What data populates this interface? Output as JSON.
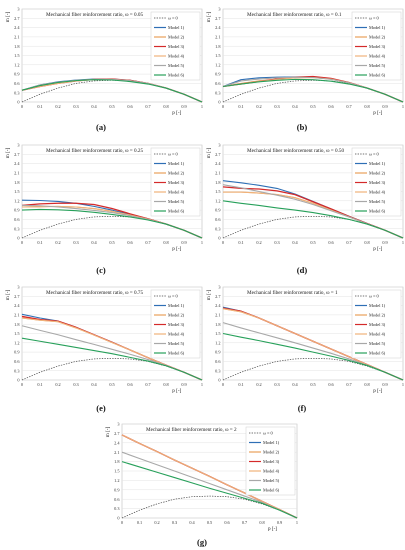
{
  "figure": {
    "legend_labels": [
      "ω = 0",
      "Model 1)",
      "Model 2)",
      "Model 3)",
      "Model 4)",
      "Model 5)",
      "Model 6)"
    ],
    "series_colors": [
      "#444444",
      "#2e6fb5",
      "#e8a05a",
      "#d42a2a",
      "#f0b27a",
      "#a8a8a8",
      "#27a05a"
    ]
  },
  "chart_data": [
    {
      "type": "line",
      "panel_label": "(a)",
      "title": "Mechanical fiber reinforcement ratio, ω = 0.05",
      "xlabel": "p [-]",
      "ylabel": "m [-]",
      "xlim": [
        0,
        1
      ],
      "ylim": [
        0,
        3
      ],
      "xticks": [
        "0",
        "0.1",
        "0.2",
        "0.3",
        "0.4",
        "0.5",
        "0.6",
        "0.7",
        "0.8",
        "0.9",
        "1"
      ],
      "yticks": [
        "0",
        "0.3",
        "0.6",
        "0.9",
        "1.2",
        "1.5",
        "1.8",
        "2.1",
        "2.4",
        "2.7",
        "3"
      ],
      "x": [
        0,
        0.1,
        0.2,
        0.3,
        0.4,
        0.5,
        0.6,
        0.7,
        0.8,
        0.9,
        1
      ],
      "series": [
        {
          "name": "ω = 0",
          "values": [
            0,
            0.25,
            0.45,
            0.6,
            0.68,
            0.7,
            0.68,
            0.6,
            0.45,
            0.25,
            0
          ]
        },
        {
          "name": "Model 1)",
          "values": [
            0.38,
            0.55,
            0.65,
            0.71,
            0.74,
            0.74,
            0.7,
            0.6,
            0.45,
            0.25,
            0
          ]
        },
        {
          "name": "Model 2)",
          "values": [
            0.38,
            0.52,
            0.62,
            0.69,
            0.73,
            0.73,
            0.69,
            0.6,
            0.45,
            0.25,
            0
          ]
        },
        {
          "name": "Model 3)",
          "values": [
            0.38,
            0.5,
            0.6,
            0.68,
            0.73,
            0.74,
            0.7,
            0.6,
            0.45,
            0.25,
            0
          ]
        },
        {
          "name": "Model 4)",
          "values": [
            0.38,
            0.5,
            0.6,
            0.68,
            0.72,
            0.73,
            0.69,
            0.6,
            0.45,
            0.25,
            0
          ]
        },
        {
          "name": "Model 5)",
          "values": [
            0.38,
            0.55,
            0.64,
            0.7,
            0.73,
            0.73,
            0.69,
            0.6,
            0.45,
            0.25,
            0
          ]
        },
        {
          "name": "Model 6)",
          "values": [
            0.38,
            0.53,
            0.63,
            0.69,
            0.72,
            0.71,
            0.66,
            0.58,
            0.45,
            0.25,
            0
          ]
        }
      ]
    },
    {
      "type": "line",
      "panel_label": "(b)",
      "title": "Mechanical fiber reinforcement ratio, ω = 0.1",
      "xlabel": "p [-]",
      "ylabel": "m [-]",
      "xlim": [
        0,
        1
      ],
      "ylim": [
        0,
        3
      ],
      "xticks": [
        "0",
        "0.1",
        "0.2",
        "0.3",
        "0.4",
        "0.5",
        "0.6",
        "0.7",
        "0.8",
        "0.9",
        "1"
      ],
      "yticks": [
        "0",
        "0.3",
        "0.6",
        "0.9",
        "1.2",
        "1.5",
        "1.8",
        "2.1",
        "2.4",
        "2.7",
        "3"
      ],
      "x": [
        0,
        0.1,
        0.2,
        0.3,
        0.4,
        0.5,
        0.6,
        0.7,
        0.8,
        0.9,
        1
      ],
      "series": [
        {
          "name": "ω = 0",
          "values": [
            0,
            0.25,
            0.45,
            0.6,
            0.68,
            0.7,
            0.68,
            0.6,
            0.45,
            0.25,
            0
          ]
        },
        {
          "name": "Model 1)",
          "values": [
            0.5,
            0.72,
            0.78,
            0.8,
            0.81,
            0.8,
            0.74,
            0.62,
            0.45,
            0.25,
            0
          ]
        },
        {
          "name": "Model 2)",
          "values": [
            0.5,
            0.6,
            0.68,
            0.74,
            0.78,
            0.79,
            0.74,
            0.62,
            0.45,
            0.25,
            0
          ]
        },
        {
          "name": "Model 3)",
          "values": [
            0.5,
            0.58,
            0.66,
            0.74,
            0.8,
            0.82,
            0.76,
            0.63,
            0.45,
            0.25,
            0
          ]
        },
        {
          "name": "Model 4)",
          "values": [
            0.5,
            0.58,
            0.66,
            0.73,
            0.78,
            0.79,
            0.74,
            0.62,
            0.45,
            0.25,
            0
          ]
        },
        {
          "name": "Model 5)",
          "values": [
            0.5,
            0.68,
            0.74,
            0.78,
            0.8,
            0.79,
            0.73,
            0.62,
            0.45,
            0.25,
            0
          ]
        },
        {
          "name": "Model 6)",
          "values": [
            0.5,
            0.58,
            0.65,
            0.7,
            0.73,
            0.72,
            0.67,
            0.58,
            0.45,
            0.25,
            0
          ]
        }
      ]
    },
    {
      "type": "line",
      "panel_label": "(c)",
      "title": "Mechanical fiber reinforcement ratio, ω = 0.25",
      "xlabel": "p [-]",
      "ylabel": "m [-]",
      "xlim": [
        0,
        1
      ],
      "ylim": [
        0,
        3
      ],
      "xticks": [
        "0",
        "0.1",
        "0.2",
        "0.3",
        "0.4",
        "0.5",
        "0.6",
        "0.7",
        "0.8",
        "0.9",
        "1"
      ],
      "yticks": [
        "0",
        "0.3",
        "0.6",
        "0.9",
        "1.2",
        "1.5",
        "1.8",
        "2.1",
        "2.4",
        "2.7",
        "3"
      ],
      "x": [
        0,
        0.1,
        0.2,
        0.3,
        0.4,
        0.5,
        0.6,
        0.7,
        0.8,
        0.9,
        1
      ],
      "series": [
        {
          "name": "ω = 0",
          "values": [
            0,
            0.25,
            0.45,
            0.6,
            0.68,
            0.7,
            0.68,
            0.6,
            0.45,
            0.25,
            0
          ]
        },
        {
          "name": "Model 1)",
          "values": [
            1.22,
            1.21,
            1.18,
            1.12,
            1.02,
            0.9,
            0.76,
            0.62,
            0.45,
            0.25,
            0
          ]
        },
        {
          "name": "Model 2)",
          "values": [
            1.0,
            1.02,
            1.02,
            1.0,
            0.95,
            0.86,
            0.74,
            0.61,
            0.45,
            0.25,
            0
          ]
        },
        {
          "name": "Model 3)",
          "values": [
            1.05,
            1.1,
            1.12,
            1.12,
            1.08,
            0.95,
            0.78,
            0.62,
            0.45,
            0.25,
            0
          ]
        },
        {
          "name": "Model 4)",
          "values": [
            1.0,
            1.0,
            1.02,
            1.0,
            0.95,
            0.86,
            0.74,
            0.61,
            0.45,
            0.25,
            0
          ]
        },
        {
          "name": "Model 5)",
          "values": [
            1.05,
            1.04,
            1.0,
            0.95,
            0.89,
            0.82,
            0.72,
            0.6,
            0.45,
            0.25,
            0
          ]
        },
        {
          "name": "Model 6)",
          "values": [
            0.9,
            0.92,
            0.91,
            0.88,
            0.83,
            0.76,
            0.68,
            0.58,
            0.45,
            0.25,
            0
          ]
        }
      ]
    },
    {
      "type": "line",
      "panel_label": "(d)",
      "title": "Mechanical fiber reinforcement ratio, ω = 0.50",
      "xlabel": "p [-]",
      "ylabel": "m [-]",
      "xlim": [
        0,
        1
      ],
      "ylim": [
        0,
        3
      ],
      "xticks": [
        "0",
        "0.1",
        "0.2",
        "0.3",
        "0.4",
        "0.5",
        "0.6",
        "0.7",
        "0.8",
        "0.9",
        "1"
      ],
      "yticks": [
        "0",
        "0.3",
        "0.6",
        "0.9",
        "1.2",
        "1.5",
        "1.8",
        "2.1",
        "2.4",
        "2.7",
        "3"
      ],
      "x": [
        0,
        0.1,
        0.2,
        0.3,
        0.4,
        0.5,
        0.6,
        0.7,
        0.8,
        0.9,
        1
      ],
      "series": [
        {
          "name": "ω = 0",
          "values": [
            0,
            0.25,
            0.45,
            0.6,
            0.68,
            0.7,
            0.68,
            0.6,
            0.45,
            0.25,
            0
          ]
        },
        {
          "name": "Model 1)",
          "values": [
            1.85,
            1.78,
            1.7,
            1.6,
            1.42,
            1.18,
            0.94,
            0.7,
            0.47,
            0.25,
            0
          ]
        },
        {
          "name": "Model 2)",
          "values": [
            1.48,
            1.48,
            1.45,
            1.4,
            1.3,
            1.12,
            0.9,
            0.68,
            0.46,
            0.25,
            0
          ]
        },
        {
          "name": "Model 3)",
          "values": [
            1.65,
            1.6,
            1.58,
            1.52,
            1.4,
            1.17,
            0.94,
            0.7,
            0.47,
            0.25,
            0
          ]
        },
        {
          "name": "Model 4)",
          "values": [
            1.48,
            1.48,
            1.45,
            1.4,
            1.3,
            1.12,
            0.9,
            0.68,
            0.46,
            0.25,
            0
          ]
        },
        {
          "name": "Model 5)",
          "values": [
            1.72,
            1.62,
            1.5,
            1.38,
            1.25,
            1.08,
            0.88,
            0.68,
            0.46,
            0.25,
            0
          ]
        },
        {
          "name": "Model 6)",
          "values": [
            1.2,
            1.12,
            1.05,
            0.97,
            0.9,
            0.82,
            0.72,
            0.6,
            0.45,
            0.25,
            0
          ]
        }
      ]
    },
    {
      "type": "line",
      "panel_label": "(e)",
      "title": "Mechanical fiber reinforcement ratio, ω = 0.75",
      "xlabel": "p [-]",
      "ylabel": "m [-]",
      "xlim": [
        0,
        1
      ],
      "ylim": [
        0,
        3
      ],
      "xticks": [
        "0",
        "0.1",
        "0.2",
        "0.3",
        "0.4",
        "0.5",
        "0.6",
        "0.7",
        "0.8",
        "0.9",
        "1"
      ],
      "yticks": [
        "0",
        "0.3",
        "0.6",
        "0.9",
        "1.2",
        "1.5",
        "1.8",
        "2.1",
        "2.4",
        "2.7",
        "3"
      ],
      "x": [
        0,
        0.1,
        0.2,
        0.3,
        0.4,
        0.5,
        0.6,
        0.7,
        0.8,
        0.9,
        1
      ],
      "series": [
        {
          "name": "ω = 0",
          "values": [
            0,
            0.25,
            0.45,
            0.6,
            0.68,
            0.7,
            0.68,
            0.6,
            0.45,
            0.25,
            0
          ]
        },
        {
          "name": "Model 1)",
          "values": [
            2.12,
            2.0,
            1.9,
            1.7,
            1.46,
            1.22,
            0.97,
            0.72,
            0.48,
            0.25,
            0
          ]
        },
        {
          "name": "Model 2)",
          "values": [
            2.0,
            1.93,
            1.88,
            1.68,
            1.45,
            1.21,
            0.97,
            0.72,
            0.48,
            0.25,
            0
          ]
        },
        {
          "name": "Model 3)",
          "values": [
            2.05,
            1.95,
            1.9,
            1.7,
            1.46,
            1.22,
            0.97,
            0.72,
            0.48,
            0.25,
            0
          ]
        },
        {
          "name": "Model 4)",
          "values": [
            2.0,
            1.93,
            1.88,
            1.68,
            1.45,
            1.21,
            0.97,
            0.72,
            0.48,
            0.25,
            0
          ]
        },
        {
          "name": "Model 5)",
          "values": [
            1.75,
            1.6,
            1.46,
            1.3,
            1.15,
            0.99,
            0.83,
            0.66,
            0.47,
            0.25,
            0
          ]
        },
        {
          "name": "Model 6)",
          "values": [
            1.35,
            1.25,
            1.15,
            1.05,
            0.95,
            0.85,
            0.73,
            0.61,
            0.46,
            0.25,
            0
          ]
        }
      ]
    },
    {
      "type": "line",
      "panel_label": "(f)",
      "title": "Mechanical fiber reinforcement ratio, ω = 1",
      "xlabel": "p [-]",
      "ylabel": "m [-]",
      "xlim": [
        0,
        1
      ],
      "ylim": [
        0,
        3
      ],
      "xticks": [
        "0",
        "0.1",
        "0.2",
        "0.3",
        "0.4",
        "0.5",
        "0.6",
        "0.7",
        "0.8",
        "0.9",
        "1"
      ],
      "yticks": [
        "0",
        "0.3",
        "0.6",
        "0.9",
        "1.2",
        "1.5",
        "1.8",
        "2.1",
        "2.4",
        "2.7",
        "3"
      ],
      "x": [
        0,
        0.1,
        0.2,
        0.3,
        0.4,
        0.5,
        0.6,
        0.7,
        0.8,
        0.9,
        1
      ],
      "series": [
        {
          "name": "ω = 0",
          "values": [
            0,
            0.25,
            0.45,
            0.6,
            0.68,
            0.7,
            0.68,
            0.6,
            0.45,
            0.25,
            0
          ]
        },
        {
          "name": "Model 1)",
          "values": [
            2.35,
            2.22,
            2.0,
            1.75,
            1.5,
            1.25,
            1.0,
            0.75,
            0.5,
            0.25,
            0
          ]
        },
        {
          "name": "Model 2)",
          "values": [
            2.3,
            2.2,
            2.0,
            1.75,
            1.5,
            1.25,
            1.0,
            0.75,
            0.5,
            0.25,
            0
          ]
        },
        {
          "name": "Model 3)",
          "values": [
            2.32,
            2.22,
            2.0,
            1.75,
            1.5,
            1.25,
            1.0,
            0.75,
            0.5,
            0.25,
            0
          ]
        },
        {
          "name": "Model 4)",
          "values": [
            2.3,
            2.2,
            2.0,
            1.75,
            1.5,
            1.25,
            1.0,
            0.75,
            0.5,
            0.25,
            0
          ]
        },
        {
          "name": "Model 5)",
          "values": [
            1.85,
            1.68,
            1.52,
            1.36,
            1.2,
            1.03,
            0.86,
            0.68,
            0.48,
            0.25,
            0
          ]
        },
        {
          "name": "Model 6)",
          "values": [
            1.5,
            1.38,
            1.27,
            1.15,
            1.03,
            0.9,
            0.77,
            0.63,
            0.47,
            0.25,
            0
          ]
        }
      ]
    },
    {
      "type": "line",
      "panel_label": "(g)",
      "title": "Mechanical fiber reinforcement ratio, ω = 2",
      "xlabel": "p [-]",
      "ylabel": "m [-]",
      "xlim": [
        0,
        1
      ],
      "ylim": [
        0,
        3
      ],
      "xticks": [
        "0",
        "0.1",
        "0.2",
        "0.3",
        "0.4",
        "0.5",
        "0.6",
        "0.7",
        "0.8",
        "0.9",
        "1"
      ],
      "yticks": [
        "0",
        "0.3",
        "0.6",
        "0.9",
        "1.2",
        "1.5",
        "1.8",
        "2.1",
        "2.4",
        "2.7",
        "3"
      ],
      "x": [
        0,
        0.1,
        0.2,
        0.3,
        0.4,
        0.5,
        0.6,
        0.7,
        0.8,
        0.9,
        1
      ],
      "series": [
        {
          "name": "ω = 0",
          "values": [
            0,
            0.25,
            0.45,
            0.6,
            0.68,
            0.7,
            0.68,
            0.6,
            0.45,
            0.25,
            0
          ]
        },
        {
          "name": "Model 1)",
          "values": [
            2.65,
            2.38,
            2.12,
            1.85,
            1.59,
            1.33,
            1.06,
            0.8,
            0.53,
            0.27,
            0
          ]
        },
        {
          "name": "Model 2)",
          "values": [
            2.65,
            2.38,
            2.12,
            1.85,
            1.59,
            1.33,
            1.06,
            0.8,
            0.53,
            0.27,
            0
          ]
        },
        {
          "name": "Model 3)",
          "values": [
            2.65,
            2.38,
            2.12,
            1.85,
            1.59,
            1.33,
            1.06,
            0.8,
            0.53,
            0.27,
            0
          ]
        },
        {
          "name": "Model 4)",
          "values": [
            2.65,
            2.38,
            2.12,
            1.85,
            1.59,
            1.33,
            1.06,
            0.8,
            0.53,
            0.27,
            0
          ]
        },
        {
          "name": "Model 5)",
          "values": [
            2.1,
            1.9,
            1.7,
            1.5,
            1.3,
            1.1,
            0.9,
            0.7,
            0.5,
            0.25,
            0
          ]
        },
        {
          "name": "Model 6)",
          "values": [
            1.8,
            1.63,
            1.46,
            1.29,
            1.12,
            0.95,
            0.79,
            0.63,
            0.47,
            0.25,
            0
          ]
        }
      ]
    }
  ]
}
